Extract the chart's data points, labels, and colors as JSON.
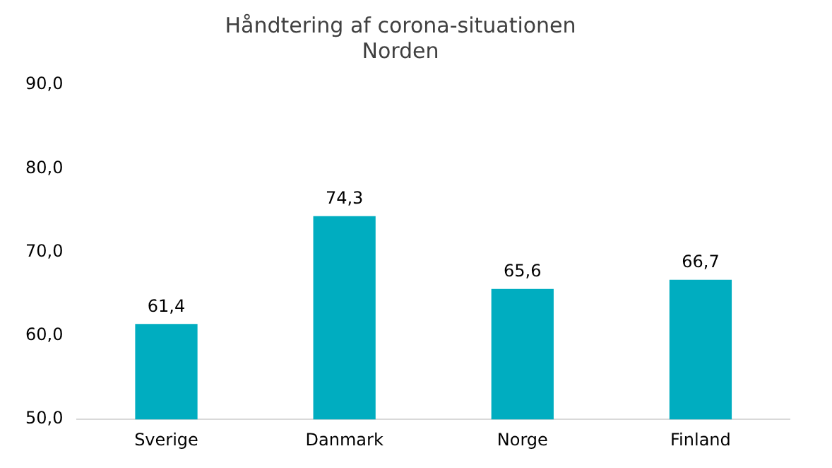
{
  "chart_data": {
    "type": "bar",
    "title": "Håndtering af corona-situationen",
    "subtitle": "Norden",
    "categories": [
      "Sverige",
      "Danmark",
      "Norge",
      "Finland"
    ],
    "values": [
      61.4,
      74.3,
      65.6,
      66.7
    ],
    "color": "#00adc0",
    "value_labels": [
      "61,4",
      "74,3",
      "65,6",
      "66,7"
    ],
    "ylim": [
      50,
      90
    ],
    "yticks": [
      {
        "value": 50,
        "label": "50,0"
      },
      {
        "value": 60,
        "label": "60,0"
      },
      {
        "value": 70,
        "label": "70,0"
      },
      {
        "value": 80,
        "label": "80,0"
      },
      {
        "value": 90,
        "label": "90,0"
      }
    ],
    "grid": false,
    "legend": false
  }
}
